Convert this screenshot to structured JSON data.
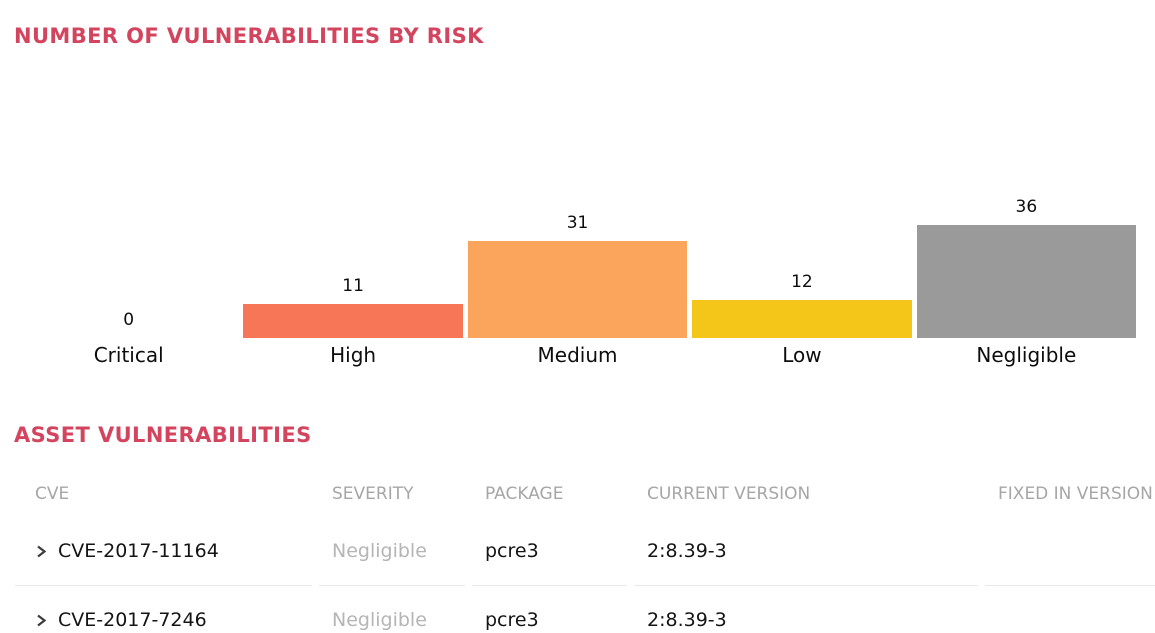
{
  "chart_section": {
    "title": "NUMBER OF VULNERABILITIES BY RISK"
  },
  "chart_data": {
    "type": "bar",
    "title": "NUMBER OF VULNERABILITIES BY RISK",
    "categories": [
      "Critical",
      "High",
      "Medium",
      "Low",
      "Negligible"
    ],
    "values": [
      0,
      11,
      31,
      12,
      36
    ],
    "bar_colors": [
      null,
      "#f77657",
      "#faa45c",
      "#f5c61a",
      "#9a9a9a"
    ],
    "value_labels_shown": true,
    "axes_hidden": true,
    "grid": false,
    "xlabel": "",
    "ylabel": ""
  },
  "table_section": {
    "title": "ASSET VULNERABILITIES",
    "columns": [
      "CVE",
      "SEVERITY",
      "PACKAGE",
      "CURRENT VERSION",
      "FIXED IN VERSION"
    ],
    "rows": [
      {
        "cve": "CVE-2017-11164",
        "severity": "Negligible",
        "package": "pcre3",
        "current_version": "2:8.39-3",
        "fixed_in_version": ""
      },
      {
        "cve": "CVE-2017-7246",
        "severity": "Negligible",
        "package": "pcre3",
        "current_version": "2:8.39-3",
        "fixed_in_version": ""
      }
    ]
  },
  "colors": {
    "accent_title": "#d3455e",
    "header_gray": "#a6a6a6",
    "severity_gray": "#b5b5b5",
    "divider": "#e9e9e9",
    "text": "#141414"
  }
}
